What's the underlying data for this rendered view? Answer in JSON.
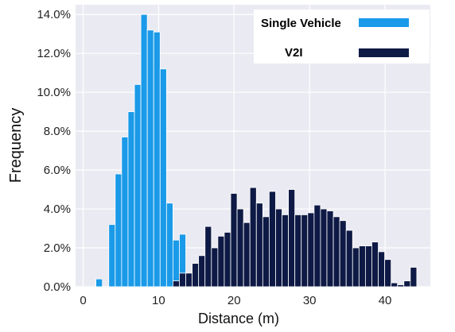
{
  "chart_data": {
    "type": "bar",
    "xlabel": "Distance (m)",
    "ylabel": "Frequency",
    "xlim": [
      -1,
      46
    ],
    "ylim": [
      0,
      0.145
    ],
    "xticks": [
      0,
      10,
      20,
      30,
      40
    ],
    "xtick_labels": [
      "0",
      "10",
      "20",
      "30",
      "40"
    ],
    "yticks": [
      0,
      0.02,
      0.04,
      0.06,
      0.08,
      0.1,
      0.12,
      0.14
    ],
    "ytick_labels": [
      "0.0%",
      "2.0%",
      "4.0%",
      "6.0%",
      "8.0%",
      "10.0%",
      "12.0%",
      "14.0%"
    ],
    "bin_width": 0.85,
    "grid": true,
    "legend_position": "top-right",
    "series": [
      {
        "name": "Single Vehicle",
        "color": "#1a9ae8",
        "x": [
          0.0,
          0.85,
          1.7,
          2.55,
          3.4,
          4.25,
          5.1,
          5.95,
          6.8,
          7.65,
          8.5,
          9.35,
          10.2,
          11.05,
          11.9,
          12.75
        ],
        "values": [
          0.0,
          0.0,
          0.004,
          0.0,
          0.032,
          0.058,
          0.077,
          0.09,
          0.104,
          0.14,
          0.132,
          0.131,
          0.112,
          0.043,
          0.024,
          0.027
        ]
      },
      {
        "name": "V2I",
        "color": "#0e1a45",
        "x": [
          11.9,
          12.75,
          13.6,
          14.45,
          15.3,
          16.15,
          17.0,
          17.85,
          18.7,
          19.55,
          20.4,
          21.25,
          22.1,
          22.95,
          23.8,
          24.65,
          25.5,
          26.35,
          27.2,
          28.05,
          28.9,
          29.75,
          30.6,
          31.45,
          32.3,
          33.15,
          34.0,
          34.85,
          35.7,
          36.55,
          37.4,
          38.25,
          39.1,
          39.95,
          40.8,
          41.65,
          42.5,
          43.35
        ],
        "values": [
          0.003,
          0.007,
          0.007,
          0.012,
          0.016,
          0.031,
          0.02,
          0.026,
          0.028,
          0.048,
          0.04,
          0.033,
          0.051,
          0.043,
          0.036,
          0.049,
          0.04,
          0.037,
          0.05,
          0.037,
          0.037,
          0.038,
          0.042,
          0.04,
          0.039,
          0.036,
          0.034,
          0.029,
          0.02,
          0.021,
          0.021,
          0.023,
          0.018,
          0.014,
          0.002,
          0.001,
          0.003,
          0.01
        ]
      }
    ]
  }
}
